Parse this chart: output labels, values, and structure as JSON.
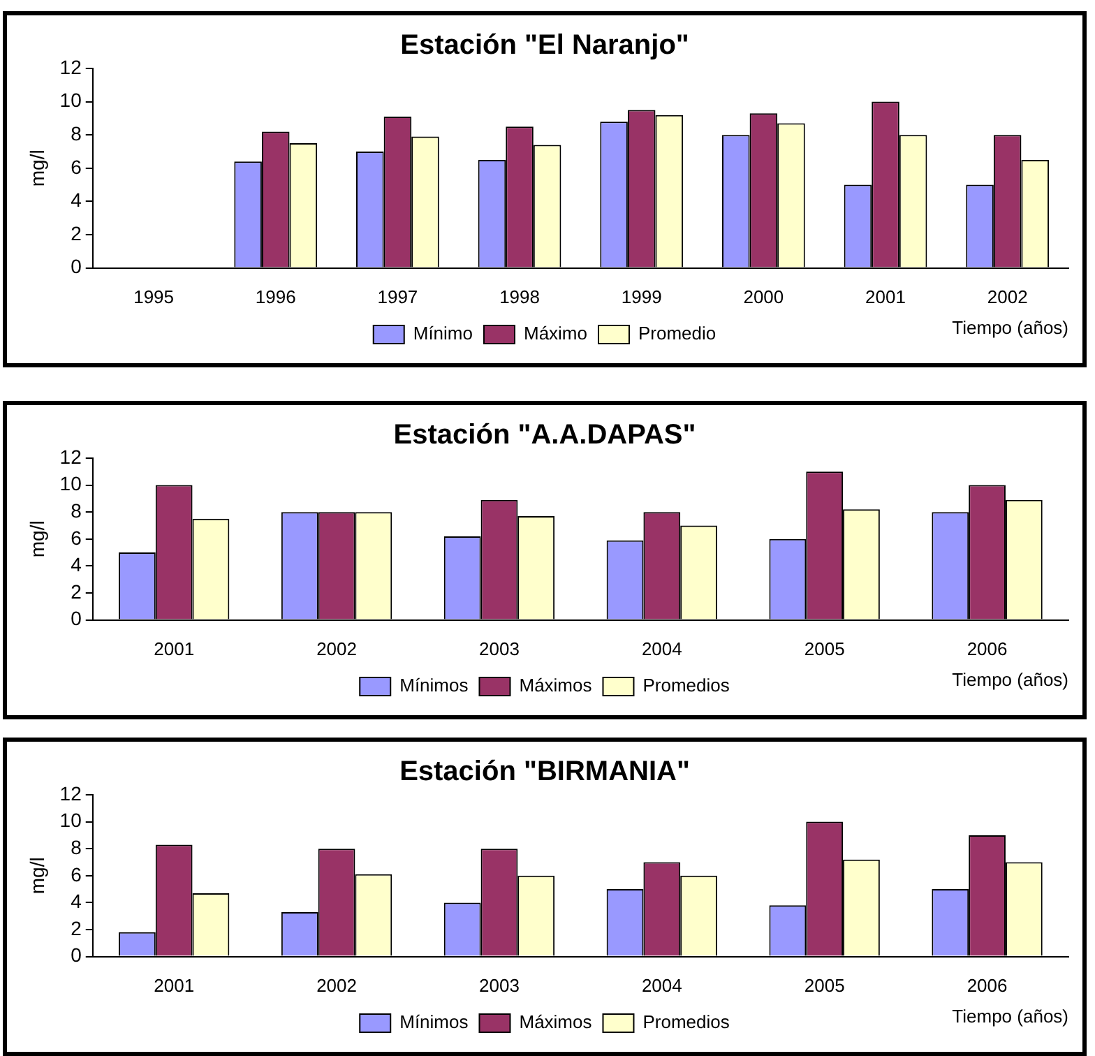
{
  "chart_data": [
    {
      "type": "bar",
      "title": "Estación \"El Naranjo\"",
      "xlabel": "Tiempo (años)",
      "ylabel": "mg/l",
      "categories": [
        "1995",
        "1996",
        "1997",
        "1998",
        "1999",
        "2000",
        "2001",
        "2002"
      ],
      "series": [
        {
          "name": "Mínimo",
          "color": "#9999ff",
          "values": [
            null,
            6.4,
            7.0,
            6.5,
            8.8,
            8.0,
            5.0,
            5.0
          ]
        },
        {
          "name": "Máximo",
          "color": "#993366",
          "values": [
            null,
            8.2,
            9.1,
            8.5,
            9.5,
            9.3,
            10.0,
            8.0
          ]
        },
        {
          "name": "Promedio",
          "color": "#ffffcc",
          "values": [
            null,
            7.5,
            7.9,
            7.4,
            9.2,
            8.7,
            8.0,
            6.5
          ]
        }
      ],
      "ylim": [
        0,
        12
      ],
      "yticks": [
        0,
        2,
        4,
        6,
        8,
        10,
        12
      ],
      "grid": false,
      "legend": "bottom"
    },
    {
      "type": "bar",
      "title": "Estación \"A.A.DAPAS\"",
      "xlabel": "Tiempo (años)",
      "ylabel": "mg/l",
      "categories": [
        "2001",
        "2002",
        "2003",
        "2004",
        "2005",
        "2006"
      ],
      "series": [
        {
          "name": "Mínimos",
          "color": "#9999ff",
          "values": [
            5.0,
            8.0,
            6.2,
            5.9,
            6.0,
            8.0
          ]
        },
        {
          "name": "Máximos",
          "color": "#993366",
          "values": [
            10.0,
            8.0,
            8.9,
            8.0,
            11.0,
            10.0
          ]
        },
        {
          "name": "Promedios",
          "color": "#ffffcc",
          "values": [
            7.5,
            8.0,
            7.7,
            7.0,
            8.2,
            8.9
          ]
        }
      ],
      "ylim": [
        0,
        12
      ],
      "yticks": [
        0,
        2,
        4,
        6,
        8,
        10,
        12
      ],
      "grid": false,
      "legend": "bottom"
    },
    {
      "type": "bar",
      "title": "Estación \"BIRMANIA\"",
      "xlabel": "Tiempo (años)",
      "ylabel": "mg/l",
      "categories": [
        "2001",
        "2002",
        "2003",
        "2004",
        "2005",
        "2006"
      ],
      "series": [
        {
          "name": "Mínimos",
          "color": "#9999ff",
          "values": [
            1.8,
            3.3,
            4.0,
            5.0,
            3.8,
            5.0
          ]
        },
        {
          "name": "Máximos",
          "color": "#993366",
          "values": [
            8.3,
            8.0,
            8.0,
            7.0,
            10.0,
            9.0
          ]
        },
        {
          "name": "Promedios",
          "color": "#ffffcc",
          "values": [
            4.7,
            6.1,
            6.0,
            6.0,
            7.2,
            7.0
          ]
        }
      ],
      "ylim": [
        0,
        12
      ],
      "yticks": [
        0,
        2,
        4,
        6,
        8,
        10,
        12
      ],
      "grid": false,
      "legend": "bottom"
    }
  ]
}
